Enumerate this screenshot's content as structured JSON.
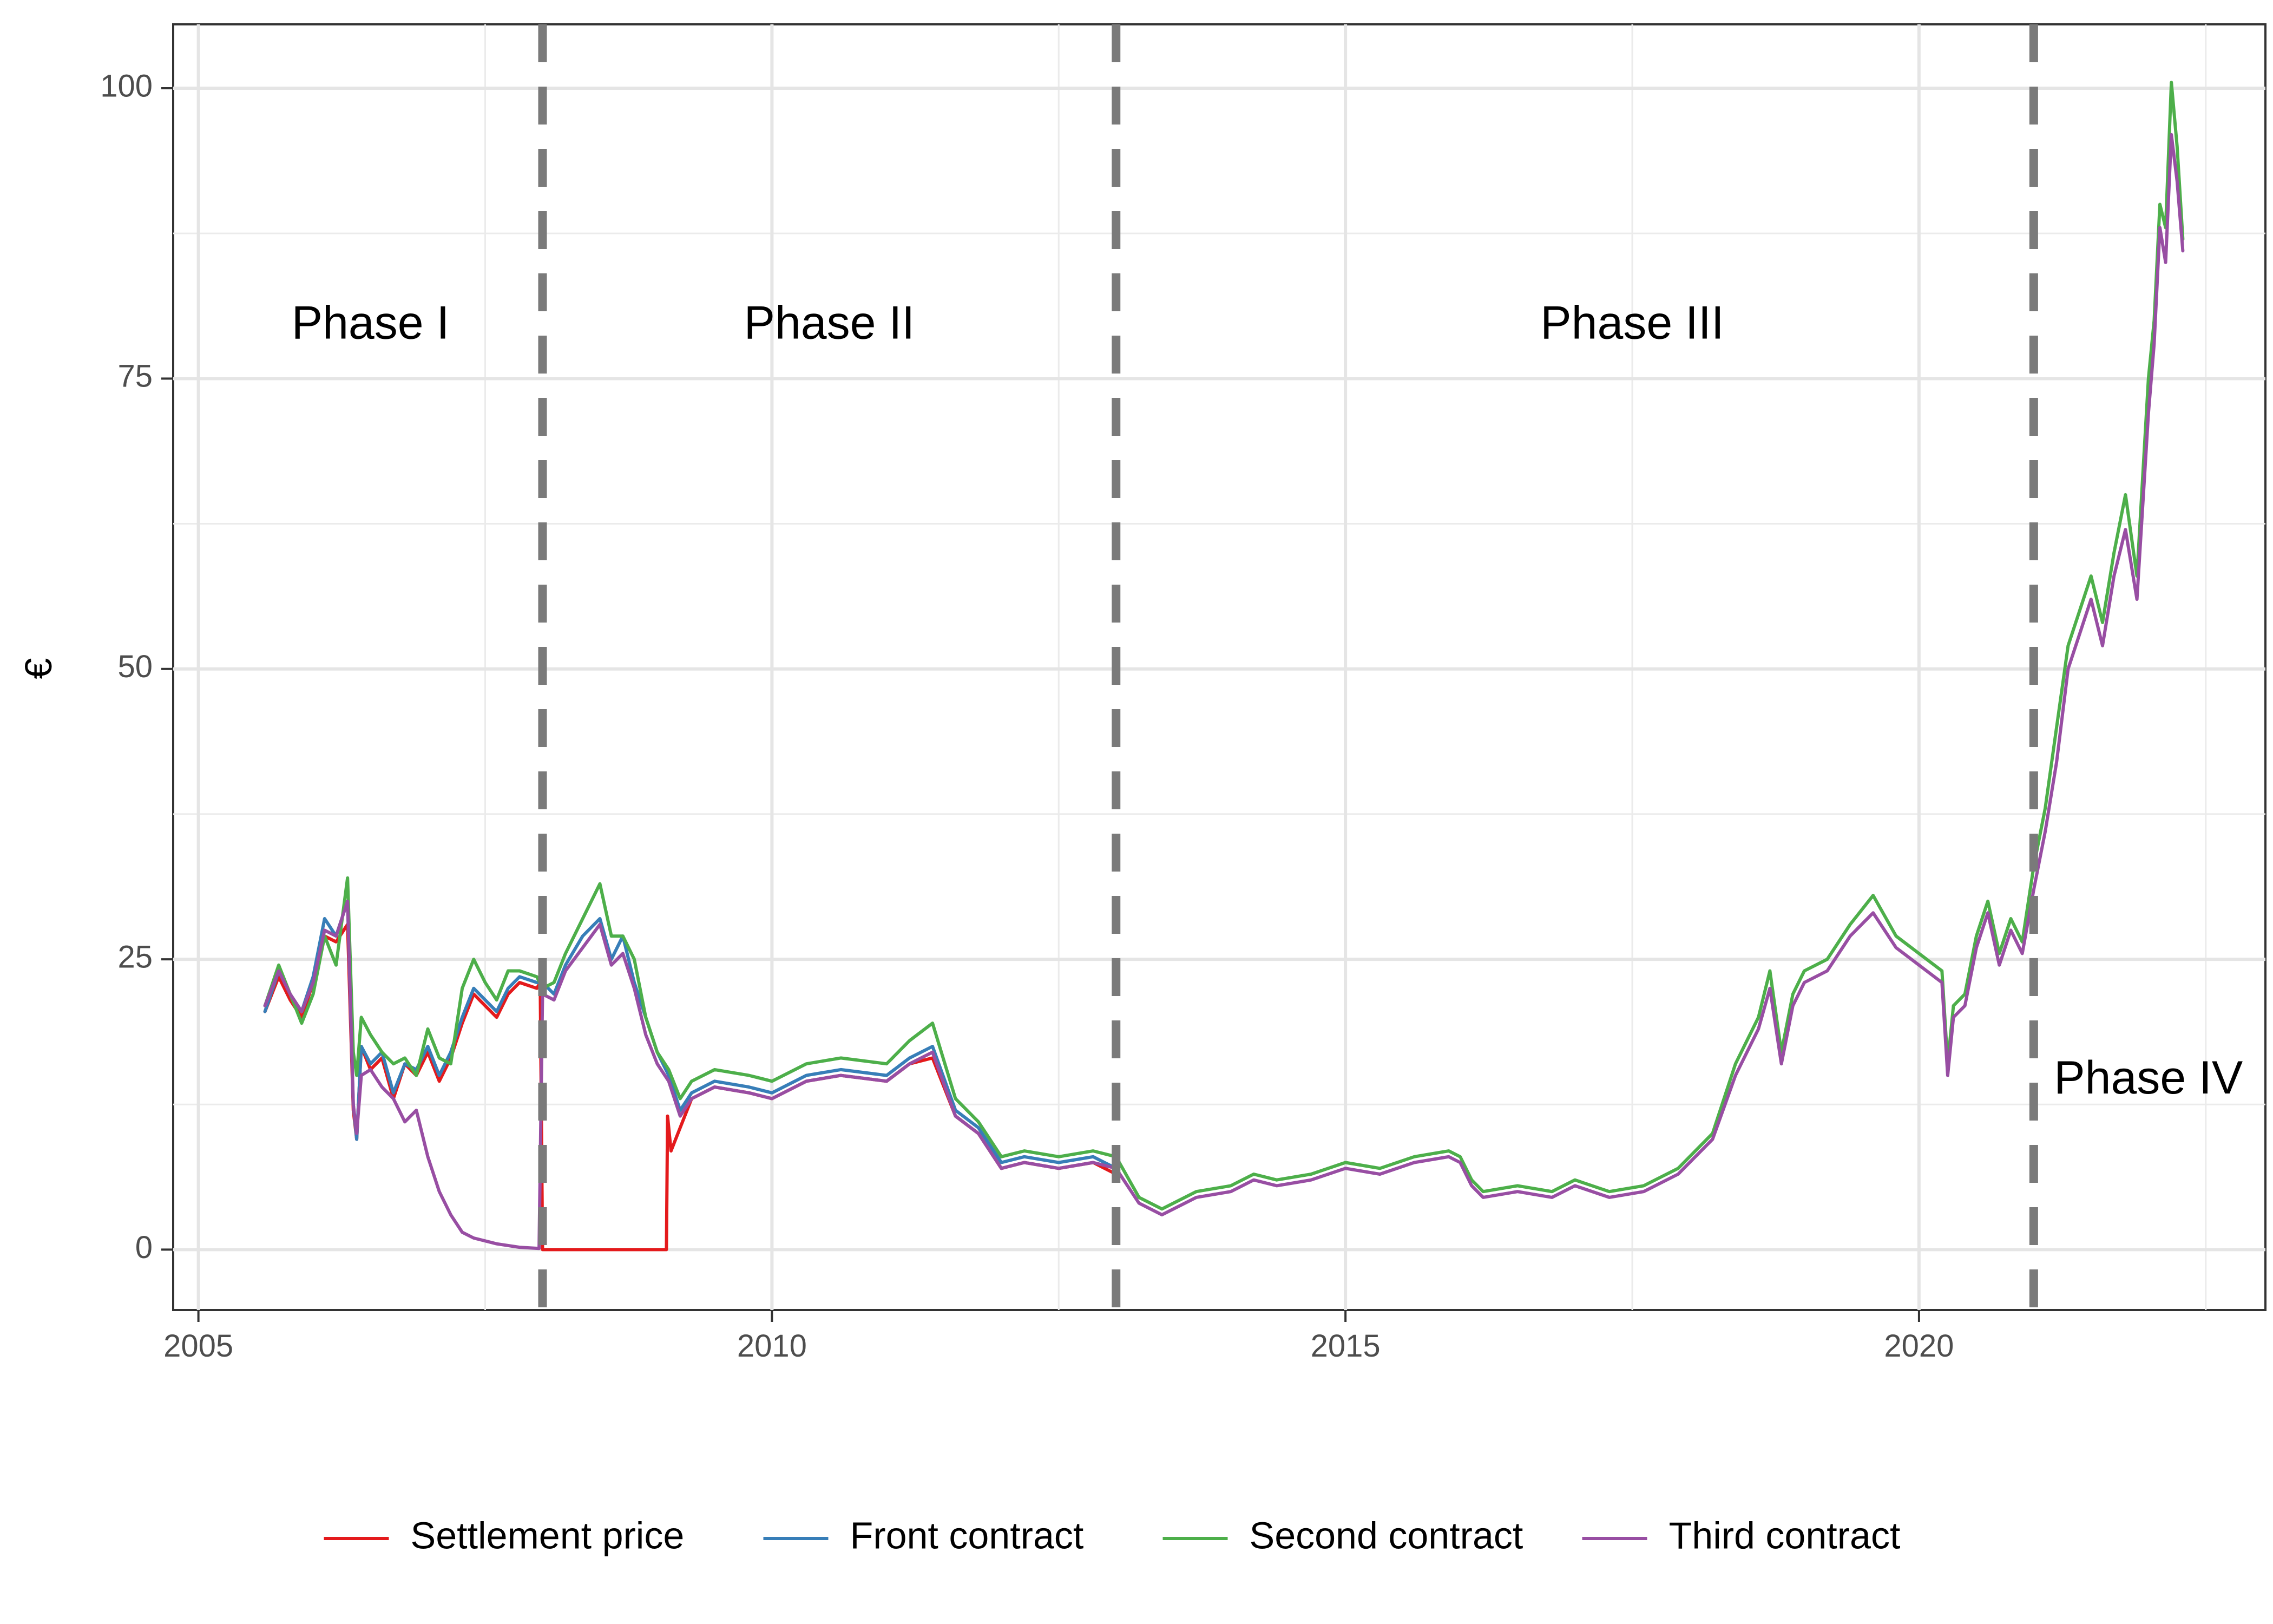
{
  "chart_data": {
    "type": "line",
    "title": "",
    "xlabel": "",
    "ylabel": "€",
    "xlim": [
      2004.78,
      2023.02
    ],
    "ylim": [
      -5.2,
      105.5
    ],
    "x_ticks": [
      {
        "value": 2005,
        "label": "2005"
      },
      {
        "value": 2010,
        "label": "2010"
      },
      {
        "value": 2015,
        "label": "2015"
      },
      {
        "value": 2020,
        "label": "2020"
      }
    ],
    "x_minor_ticks": [
      2007.5,
      2012.5,
      2017.5,
      2022.5
    ],
    "y_ticks": [
      {
        "value": 0,
        "label": "0"
      },
      {
        "value": 25,
        "label": "25"
      },
      {
        "value": 50,
        "label": "50"
      },
      {
        "value": 75,
        "label": "75"
      },
      {
        "value": 100,
        "label": "100"
      }
    ],
    "y_minor_ticks": [
      12.5,
      37.5,
      62.5,
      87.5
    ],
    "grid": true,
    "legend": "bottom",
    "phase_boundaries": [
      2008.0,
      2013.0,
      2021.0
    ],
    "phase_labels": [
      {
        "text": "Phase I",
        "x": 2006.5,
        "y": 79.5
      },
      {
        "text": "Phase II",
        "x": 2010.5,
        "y": 79.5
      },
      {
        "text": "Phase III",
        "x": 2017.5,
        "y": 79.5
      },
      {
        "text": "Phase IV",
        "x": 2022.0,
        "y": 14.5
      }
    ],
    "series": [
      {
        "name": "Settlement price",
        "color": "#e41a1c",
        "x": [
          2005.58,
          2005.7,
          2005.8,
          2005.9,
          2006.0,
          2006.1,
          2006.2,
          2006.3,
          2006.35,
          2006.38,
          2006.42,
          2006.5,
          2006.6,
          2006.7,
          2006.8,
          2006.9,
          2007.0,
          2007.1,
          2007.2,
          2007.3,
          2007.4,
          2007.5,
          2007.6,
          2007.7,
          2007.8,
          2007.95,
          2007.98,
          2008.0,
          2008.4,
          2008.8,
          2009.08,
          2009.09,
          2009.12,
          2009.3,
          2009.5,
          2009.8,
          2010.0,
          2010.3,
          2010.6,
          2011.0,
          2011.2,
          2011.4,
          2011.6,
          2011.8,
          2012.0,
          2012.2,
          2012.5,
          2012.8,
          2013.0
        ],
        "y": [
          20.5,
          23.5,
          21.5,
          20.0,
          23.0,
          27.0,
          26.5,
          28.0,
          12.0,
          9.5,
          17.5,
          15.5,
          16.5,
          13.0,
          16.0,
          15.0,
          17.0,
          14.5,
          16.5,
          19.5,
          22.0,
          21.0,
          20.0,
          22.0,
          23.0,
          22.5,
          23.0,
          0,
          0,
          0,
          0,
          11.5,
          8.5,
          13.0,
          14.0,
          13.5,
          13.0,
          14.5,
          15.0,
          14.5,
          16.0,
          16.5,
          11.5,
          10.0,
          7.0,
          7.5,
          7.0,
          7.5,
          6.5
        ]
      },
      {
        "name": "Front contract",
        "color": "#377eb8",
        "x": [
          2005.58,
          2005.7,
          2005.8,
          2005.9,
          2006.0,
          2006.1,
          2006.2,
          2006.3,
          2006.35,
          2006.38,
          2006.42,
          2006.5,
          2006.6,
          2006.7,
          2006.8,
          2006.9,
          2007.0,
          2007.1,
          2007.2,
          2007.3,
          2007.4,
          2007.5,
          2007.6,
          2007.7,
          2007.8,
          2007.95,
          2008.0,
          2008.1,
          2008.2,
          2008.35,
          2008.5,
          2008.6,
          2008.7,
          2008.8,
          2008.9,
          2009.0,
          2009.1,
          2009.2,
          2009.3,
          2009.5,
          2009.8,
          2010.0,
          2010.3,
          2010.6,
          2011.0,
          2011.2,
          2011.4,
          2011.6,
          2011.8,
          2012.0,
          2012.2,
          2012.5,
          2012.8,
          2013.0
        ],
        "y": [
          20.5,
          24.0,
          22.0,
          20.5,
          23.5,
          28.5,
          27.0,
          30.0,
          12.5,
          9.5,
          17.5,
          16.0,
          17.0,
          13.5,
          16.0,
          15.5,
          17.5,
          15.0,
          17.0,
          20.0,
          22.5,
          21.5,
          20.5,
          22.5,
          23.5,
          23.0,
          23.0,
          22.0,
          24.5,
          27.0,
          28.5,
          25.0,
          27.0,
          23.0,
          20.0,
          17.0,
          15.0,
          12.0,
          13.5,
          14.5,
          14.0,
          13.5,
          15.0,
          15.5,
          15.0,
          16.5,
          17.5,
          12.0,
          10.5,
          7.5,
          8.0,
          7.5,
          8.0,
          7.0
        ]
      },
      {
        "name": "Second contract",
        "color": "#4daf4a",
        "x": [
          2005.58,
          2005.7,
          2005.8,
          2005.9,
          2006.0,
          2006.1,
          2006.2,
          2006.3,
          2006.35,
          2006.38,
          2006.42,
          2006.5,
          2006.6,
          2006.7,
          2006.8,
          2006.9,
          2007.0,
          2007.1,
          2007.2,
          2007.3,
          2007.4,
          2007.5,
          2007.6,
          2007.7,
          2007.8,
          2007.95,
          2008.0,
          2008.1,
          2008.2,
          2008.35,
          2008.5,
          2008.6,
          2008.7,
          2008.8,
          2008.9,
          2009.0,
          2009.1,
          2009.2,
          2009.3,
          2009.5,
          2009.8,
          2010.0,
          2010.3,
          2010.6,
          2011.0,
          2011.2,
          2011.4,
          2011.6,
          2011.8,
          2012.0,
          2012.2,
          2012.5,
          2012.8,
          2013.0,
          2013.2,
          2013.4,
          2013.7,
          2014.0,
          2014.2,
          2014.4,
          2014.7,
          2015.0,
          2015.3,
          2015.6,
          2015.9,
          2016.0,
          2016.1,
          2016.2,
          2016.5,
          2016.8,
          2017.0,
          2017.3,
          2017.6,
          2017.9,
          2018.0,
          2018.2,
          2018.4,
          2018.6,
          2018.7,
          2018.8,
          2018.9,
          2019.0,
          2019.2,
          2019.4,
          2019.6,
          2019.8,
          2020.0,
          2020.2,
          2020.25,
          2020.3,
          2020.4,
          2020.5,
          2020.6,
          2020.7,
          2020.8,
          2020.9,
          2021.0,
          2021.1,
          2021.2,
          2021.3,
          2021.4,
          2021.5,
          2021.6,
          2021.7,
          2021.8,
          2021.9,
          2022.0,
          2022.05,
          2022.1,
          2022.15,
          2022.2,
          2022.25,
          2022.3
        ],
        "y": [
          21.0,
          24.5,
          22.0,
          19.5,
          22.0,
          27.0,
          24.5,
          32.0,
          17.0,
          15.0,
          20.0,
          18.5,
          17.0,
          16.0,
          16.5,
          15.0,
          19.0,
          16.5,
          16.0,
          22.5,
          25.0,
          23.0,
          21.5,
          24.0,
          24.0,
          23.5,
          22.5,
          23.0,
          25.5,
          28.5,
          31.5,
          27.0,
          27.0,
          25.0,
          20.0,
          17.0,
          15.5,
          13.0,
          14.5,
          15.5,
          15.0,
          14.5,
          16.0,
          16.5,
          16.0,
          18.0,
          19.5,
          13.0,
          11.0,
          8.0,
          8.5,
          8.0,
          8.5,
          8.0,
          4.5,
          3.5,
          5.0,
          5.5,
          6.5,
          6.0,
          6.5,
          7.5,
          7.0,
          8.0,
          8.5,
          8.0,
          6.0,
          5.0,
          5.5,
          5.0,
          6.0,
          5.0,
          5.5,
          7.0,
          8.0,
          10.0,
          16.0,
          20.0,
          24.0,
          17.0,
          22.0,
          24.0,
          25.0,
          28.0,
          30.5,
          27.0,
          25.5,
          24.0,
          16.0,
          21.0,
          22.0,
          27.0,
          30.0,
          25.5,
          28.5,
          26.5,
          33.0,
          38.0,
          45.0,
          52.0,
          55.0,
          58.0,
          54.0,
          60.0,
          65.0,
          58.0,
          75.0,
          80.0,
          90.0,
          88.0,
          100.5,
          95.0,
          87.0
        ]
      },
      {
        "name": "Third contract",
        "color": "#984ea3",
        "x": [
          2005.58,
          2005.7,
          2005.8,
          2005.9,
          2006.0,
          2006.1,
          2006.2,
          2006.3,
          2006.35,
          2006.38,
          2006.42,
          2006.5,
          2006.6,
          2006.7,
          2006.8,
          2006.9,
          2007.0,
          2007.1,
          2007.2,
          2007.3,
          2007.4,
          2007.6,
          2007.8,
          2007.97,
          2008.0,
          2008.1,
          2008.2,
          2008.35,
          2008.5,
          2008.6,
          2008.7,
          2008.8,
          2008.9,
          2009.0,
          2009.1,
          2009.2,
          2009.3,
          2009.5,
          2009.8,
          2010.0,
          2010.3,
          2010.6,
          2011.0,
          2011.2,
          2011.4,
          2011.6,
          2011.8,
          2012.0,
          2012.2,
          2012.5,
          2012.8,
          2013.0,
          2013.2,
          2013.4,
          2013.7,
          2014.0,
          2014.2,
          2014.4,
          2014.7,
          2015.0,
          2015.3,
          2015.6,
          2015.9,
          2016.0,
          2016.1,
          2016.2,
          2016.5,
          2016.8,
          2017.0,
          2017.3,
          2017.6,
          2017.9,
          2018.0,
          2018.2,
          2018.4,
          2018.6,
          2018.7,
          2018.8,
          2018.9,
          2019.0,
          2019.2,
          2019.4,
          2019.6,
          2019.8,
          2020.0,
          2020.2,
          2020.25,
          2020.3,
          2020.4,
          2020.5,
          2020.6,
          2020.7,
          2020.8,
          2020.9,
          2021.0,
          2021.1,
          2021.2,
          2021.3,
          2021.4,
          2021.5,
          2021.6,
          2021.7,
          2021.8,
          2021.9,
          2022.0,
          2022.05,
          2022.1,
          2022.15,
          2022.2,
          2022.25,
          2022.3
        ],
        "y": [
          21.0,
          24.0,
          22.0,
          20.5,
          23.0,
          27.5,
          27.0,
          30.0,
          12.5,
          10.0,
          15.0,
          15.5,
          14.0,
          13.0,
          11.0,
          12.0,
          8.0,
          5.0,
          3.0,
          1.5,
          1.0,
          0.5,
          0.2,
          0.1,
          22.0,
          21.5,
          24.0,
          26.0,
          28.0,
          24.5,
          25.5,
          22.5,
          18.5,
          16.0,
          14.5,
          11.5,
          13.0,
          14.0,
          13.5,
          13.0,
          14.5,
          15.0,
          14.5,
          16.0,
          17.0,
          11.5,
          10.0,
          7.0,
          7.5,
          7.0,
          7.5,
          7.0,
          4.0,
          3.0,
          4.5,
          5.0,
          6.0,
          5.5,
          6.0,
          7.0,
          6.5,
          7.5,
          8.0,
          7.5,
          5.5,
          4.5,
          5.0,
          4.5,
          5.5,
          4.5,
          5.0,
          6.5,
          7.5,
          9.5,
          15.0,
          19.0,
          22.5,
          16.0,
          21.0,
          23.0,
          24.0,
          27.0,
          29.0,
          26.0,
          24.5,
          23.0,
          15.0,
          20.0,
          21.0,
          26.0,
          29.0,
          24.5,
          27.5,
          25.5,
          31.0,
          36.0,
          42.0,
          50.0,
          53.0,
          56.0,
          52.0,
          58.0,
          62.0,
          56.0,
          72.0,
          78.0,
          88.0,
          85.0,
          96.0,
          92.0,
          86.0
        ]
      }
    ]
  }
}
